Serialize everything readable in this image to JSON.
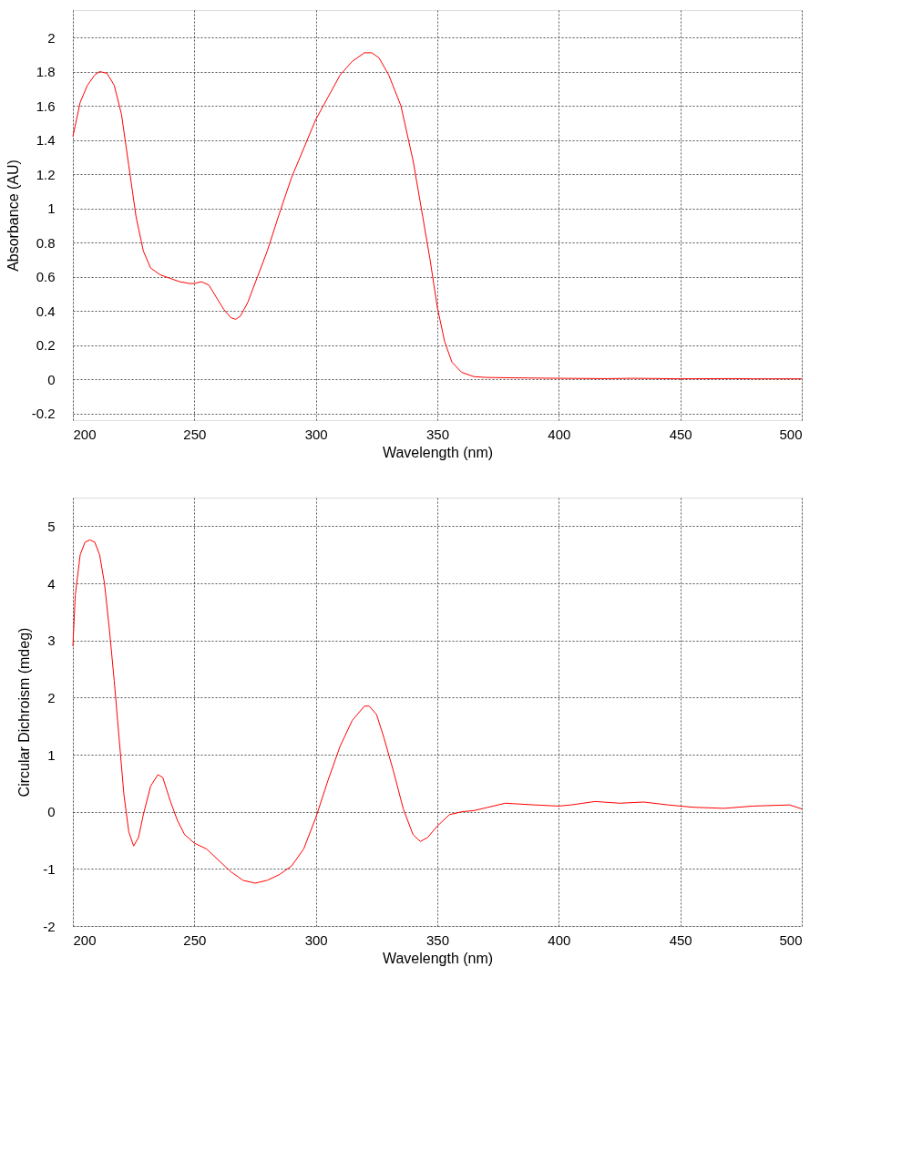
{
  "chart_data": [
    {
      "type": "line",
      "xlabel": "Wavelength (nm)",
      "ylabel": "Absorbance (AU)",
      "xlim": [
        200,
        500
      ],
      "xticks": [
        200,
        250,
        300,
        350,
        400,
        450,
        500
      ],
      "ylim": [
        -0.24,
        2.16
      ],
      "yticks": [
        -0.2,
        0,
        0.2,
        0.4,
        0.6,
        0.8,
        1,
        1.2,
        1.4,
        1.6,
        1.8,
        2
      ],
      "grid": true,
      "marker": "none",
      "line_style": "solid",
      "x": [
        200,
        203,
        206,
        209,
        211,
        214,
        217,
        220,
        223,
        226,
        229,
        232,
        236,
        240,
        244,
        248,
        250,
        253,
        256,
        259,
        262,
        265,
        267,
        269,
        272,
        276,
        280,
        285,
        290,
        295,
        300,
        305,
        310,
        315,
        320,
        323,
        326,
        330,
        335,
        340,
        344,
        347,
        350,
        353,
        356,
        360,
        365,
        370,
        380,
        400,
        420,
        430,
        450,
        470,
        480,
        500
      ],
      "series": [
        {
          "color": "#ff0000",
          "values": [
            1.42,
            1.62,
            1.72,
            1.78,
            1.8,
            1.79,
            1.72,
            1.55,
            1.25,
            0.95,
            0.75,
            0.65,
            0.61,
            0.59,
            0.57,
            0.56,
            0.56,
            0.57,
            0.55,
            0.48,
            0.41,
            0.36,
            0.35,
            0.37,
            0.45,
            0.6,
            0.75,
            0.97,
            1.18,
            1.35,
            1.52,
            1.65,
            1.78,
            1.86,
            1.91,
            1.91,
            1.88,
            1.78,
            1.6,
            1.28,
            0.95,
            0.7,
            0.42,
            0.22,
            0.1,
            0.04,
            0.015,
            0.01,
            0.008,
            0.005,
            0.003,
            0.005,
            0.002,
            0.003,
            0.002,
            0.002
          ]
        }
      ]
    },
    {
      "type": "line",
      "xlabel": "Wavelength (nm)",
      "ylabel": "Circular Dichroism (mdeg)",
      "xlim": [
        200,
        500
      ],
      "xticks": [
        200,
        250,
        300,
        350,
        400,
        450,
        500
      ],
      "ylim": [
        -2,
        5.5
      ],
      "yticks": [
        -2,
        -1,
        0,
        1,
        2,
        3,
        4,
        5
      ],
      "grid": true,
      "marker": "none",
      "line_style": "solid",
      "x": [
        200,
        201,
        203,
        205,
        207,
        209,
        211,
        213,
        215,
        217,
        219,
        221,
        223,
        225,
        227,
        229,
        232,
        235,
        237,
        240,
        243,
        246,
        250,
        255,
        260,
        265,
        270,
        275,
        280,
        285,
        290,
        295,
        300,
        305,
        310,
        315,
        320,
        322,
        325,
        328,
        332,
        336,
        340,
        343,
        346,
        350,
        355,
        360,
        365,
        370,
        378,
        390,
        400,
        405,
        415,
        425,
        435,
        445,
        455,
        468,
        480,
        495,
        500
      ],
      "series": [
        {
          "color": "#ff0000",
          "values": [
            2.9,
            3.8,
            4.5,
            4.72,
            4.76,
            4.72,
            4.5,
            4.0,
            3.2,
            2.3,
            1.3,
            0.3,
            -0.35,
            -0.6,
            -0.45,
            -0.05,
            0.45,
            0.65,
            0.6,
            0.2,
            -0.15,
            -0.4,
            -0.55,
            -0.65,
            -0.85,
            -1.05,
            -1.2,
            -1.25,
            -1.2,
            -1.1,
            -0.95,
            -0.65,
            -0.1,
            0.55,
            1.15,
            1.6,
            1.85,
            1.85,
            1.7,
            1.3,
            0.7,
            0.05,
            -0.4,
            -0.52,
            -0.45,
            -0.25,
            -0.05,
            0.0,
            0.02,
            0.07,
            0.15,
            0.12,
            0.1,
            0.12,
            0.18,
            0.15,
            0.17,
            0.12,
            0.08,
            0.06,
            0.1,
            0.12,
            0.05
          ]
        }
      ]
    }
  ]
}
